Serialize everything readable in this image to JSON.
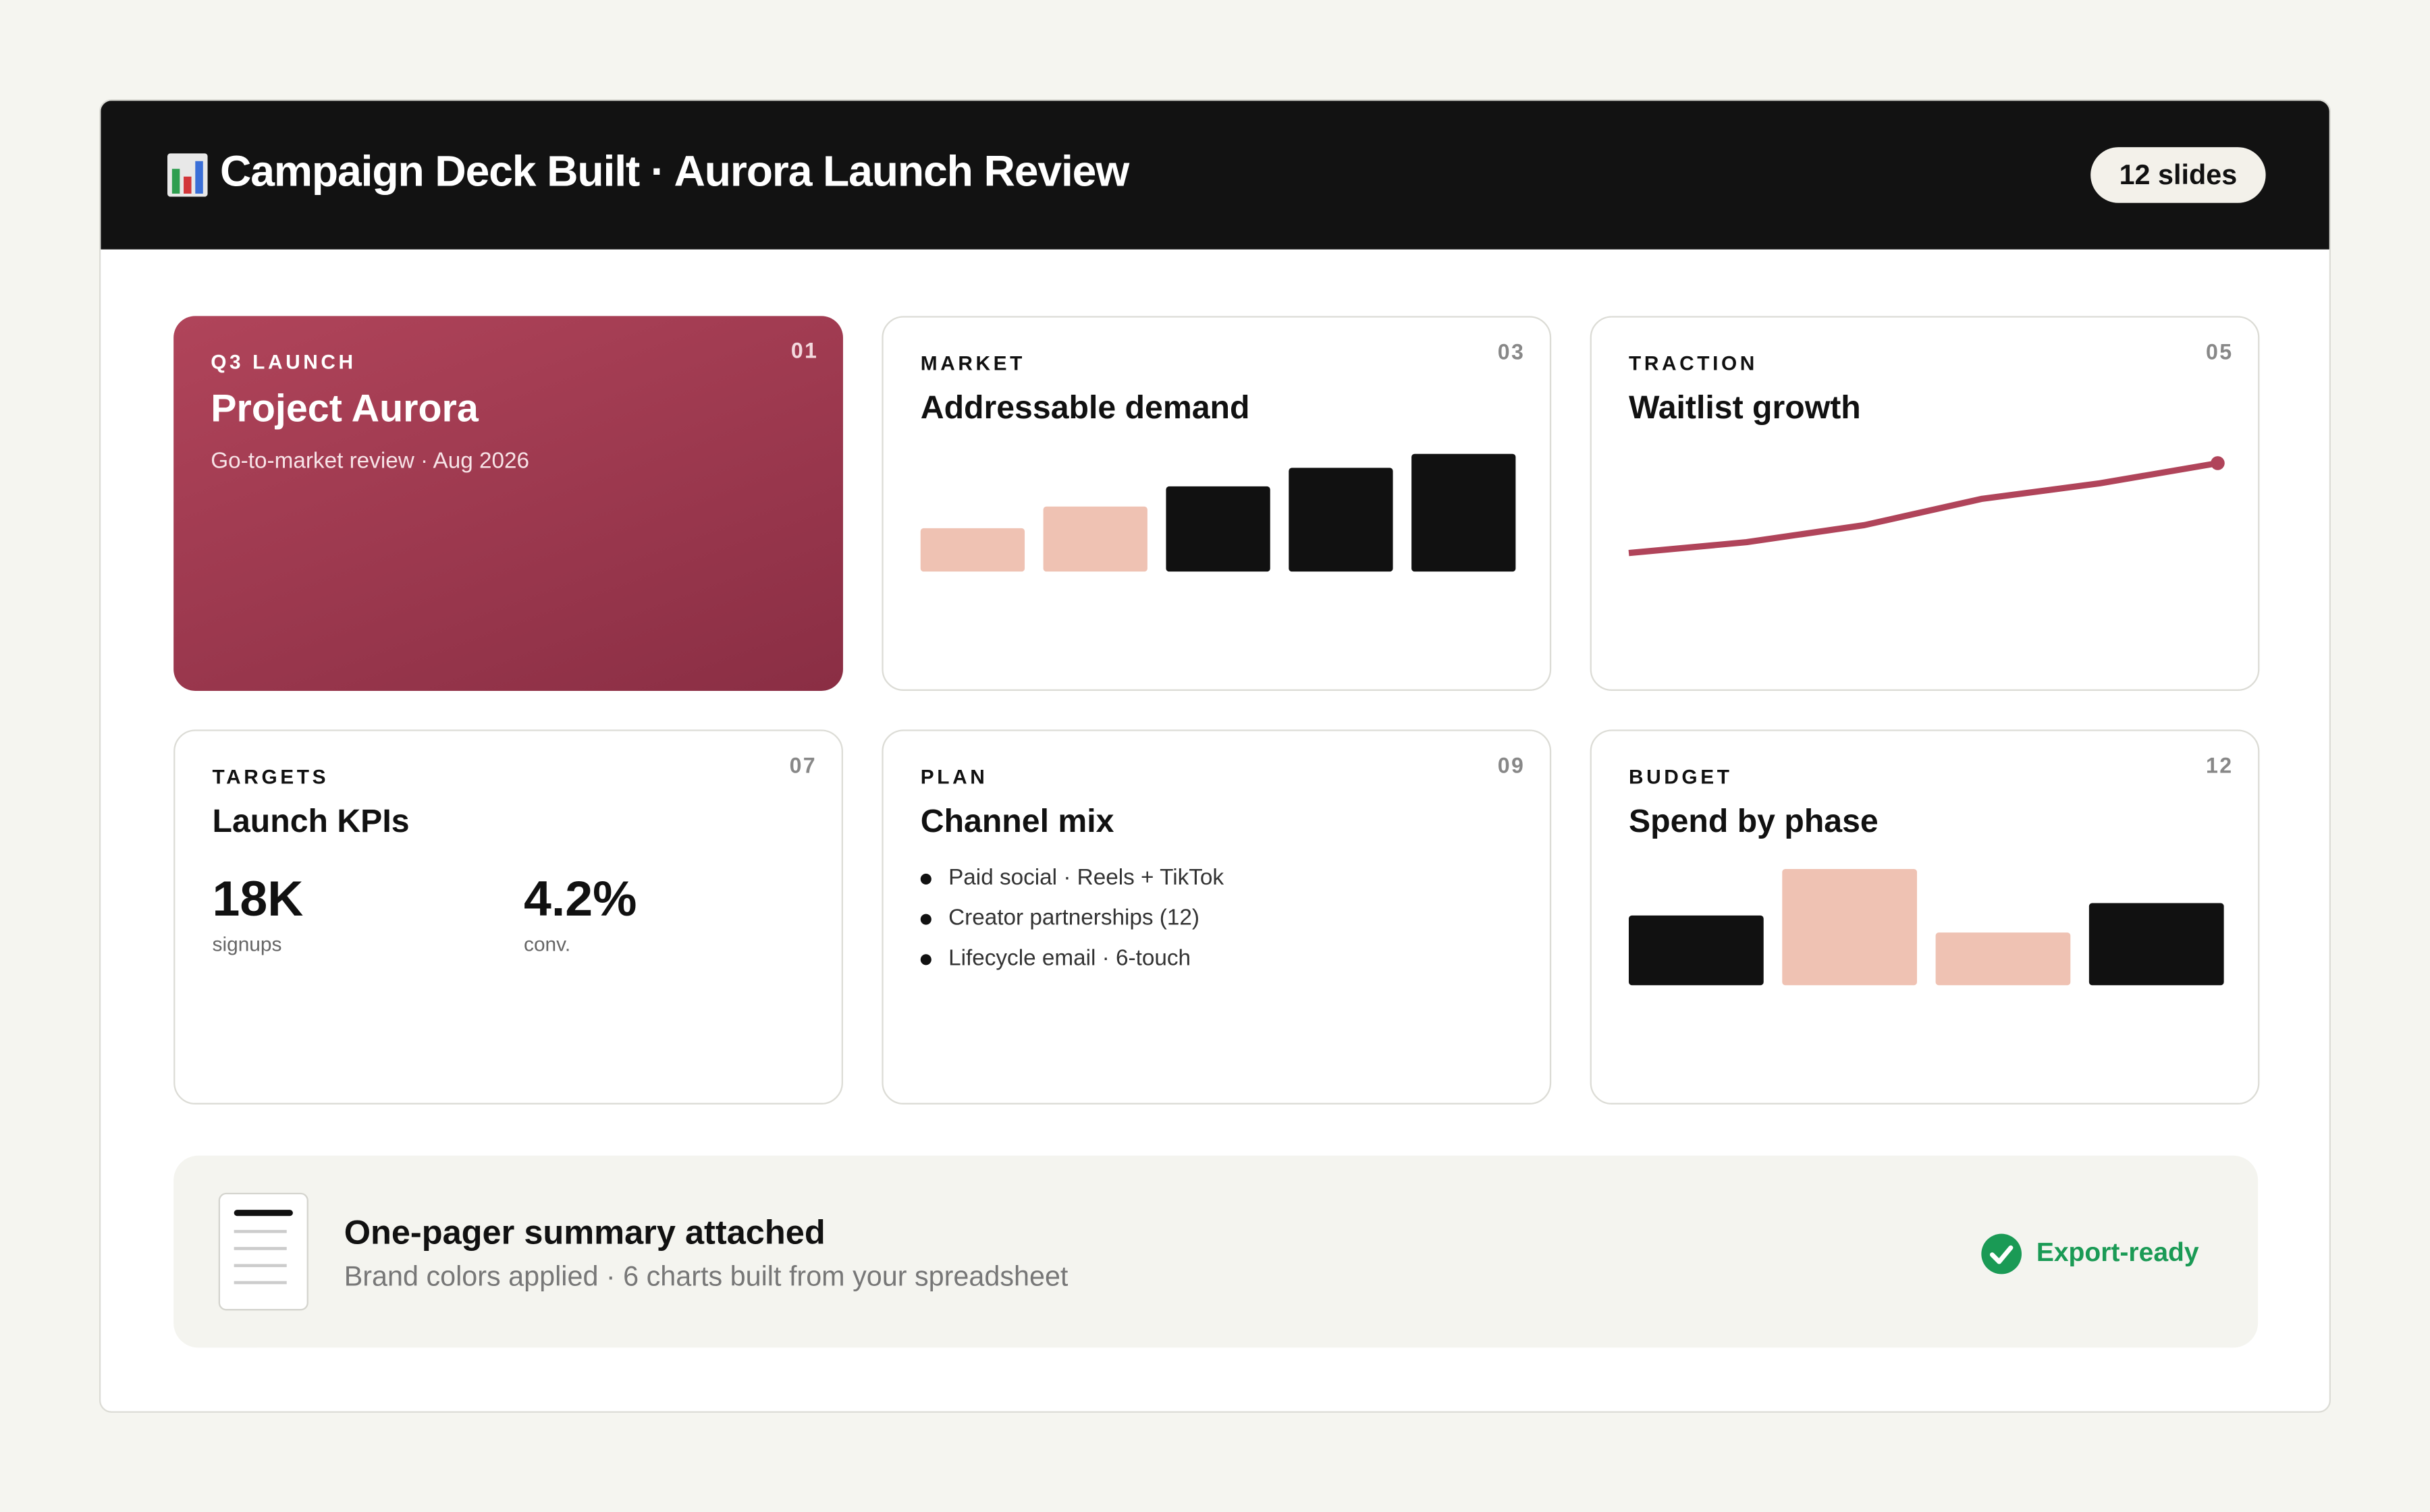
{
  "header": {
    "title": "Campaign Deck Built · Aurora Launch Review",
    "badge": "12 slides"
  },
  "slides": [
    {
      "label": "Q3 LAUNCH",
      "number": "01",
      "title": "Project Aurora",
      "subtitle": "Go-to-market review · Aug 2026"
    },
    {
      "label": "MARKET",
      "number": "03",
      "title": "Addressable demand",
      "chart": {
        "type": "bar",
        "values": [
          28,
          42,
          55,
          67,
          76
        ],
        "colors": [
          "#efc2b3",
          "#efc2b3",
          "#111111",
          "#111111",
          "#111111"
        ]
      }
    },
    {
      "label": "TRACTION",
      "number": "05",
      "title": "Waitlist growth",
      "chart": {
        "type": "line",
        "values": [
          10,
          17,
          28,
          45,
          55,
          68
        ],
        "color": "#b0445a"
      }
    },
    {
      "label": "TARGETS",
      "number": "07",
      "title": "Launch KPIs",
      "kpis": [
        {
          "value": "18K",
          "caption": "signups"
        },
        {
          "value": "4.2%",
          "caption": "conv."
        }
      ]
    },
    {
      "label": "PLAN",
      "number": "09",
      "title": "Channel mix",
      "items": [
        "Paid social · Reels + TikTok",
        "Creator partnerships (12)",
        "Lifecycle email · 6-touch"
      ]
    },
    {
      "label": "BUDGET",
      "number": "12",
      "title": "Spend by phase",
      "chart": {
        "type": "bar",
        "values": [
          45,
          75,
          34,
          53
        ],
        "colors": [
          "#111111",
          "#efc2b3",
          "#efc2b3",
          "#111111"
        ]
      }
    }
  ],
  "footer": {
    "title": "One-pager summary attached",
    "subtitle": "Brand colors applied · 6 charts built from your spreadsheet",
    "status": "Export-ready"
  }
}
